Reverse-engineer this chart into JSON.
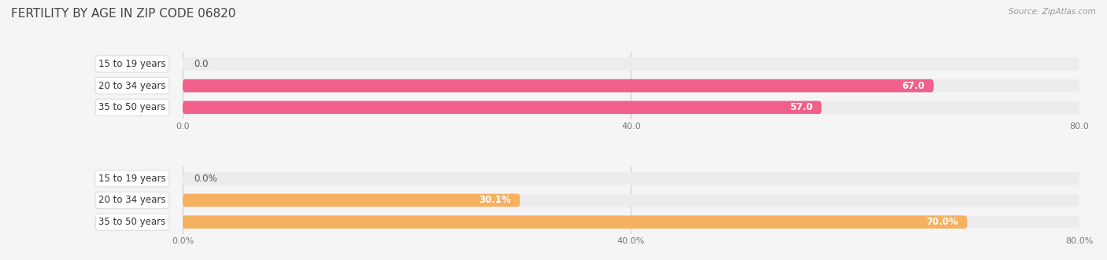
{
  "title": "FERTILITY BY AGE IN ZIP CODE 06820",
  "source": "Source: ZipAtlas.com",
  "top_chart": {
    "categories": [
      "15 to 19 years",
      "20 to 34 years",
      "35 to 50 years"
    ],
    "values": [
      0.0,
      67.0,
      57.0
    ],
    "x_max": 80.0,
    "xticks": [
      0.0,
      40.0,
      80.0
    ],
    "xtick_labels": [
      "0.0",
      "40.0",
      "80.0"
    ],
    "bar_color": "#F0608A",
    "bar_bg_color": "#ECECEC",
    "label_bg": "white",
    "label_border": "#DDDDDD"
  },
  "bottom_chart": {
    "categories": [
      "15 to 19 years",
      "20 to 34 years",
      "35 to 50 years"
    ],
    "values": [
      0.0,
      30.1,
      70.0
    ],
    "x_max": 80.0,
    "xticks": [
      0.0,
      40.0,
      80.0
    ],
    "xtick_labels": [
      "0.0%",
      "40.0%",
      "80.0%"
    ],
    "bar_color": "#F5B060",
    "bar_bg_color": "#ECECEC",
    "label_bg": "white",
    "label_border": "#DDDDDD"
  },
  "bg_color": "#F5F5F5",
  "title_fontsize": 11,
  "label_fontsize": 8.5,
  "value_fontsize": 8.5,
  "tick_fontsize": 8
}
